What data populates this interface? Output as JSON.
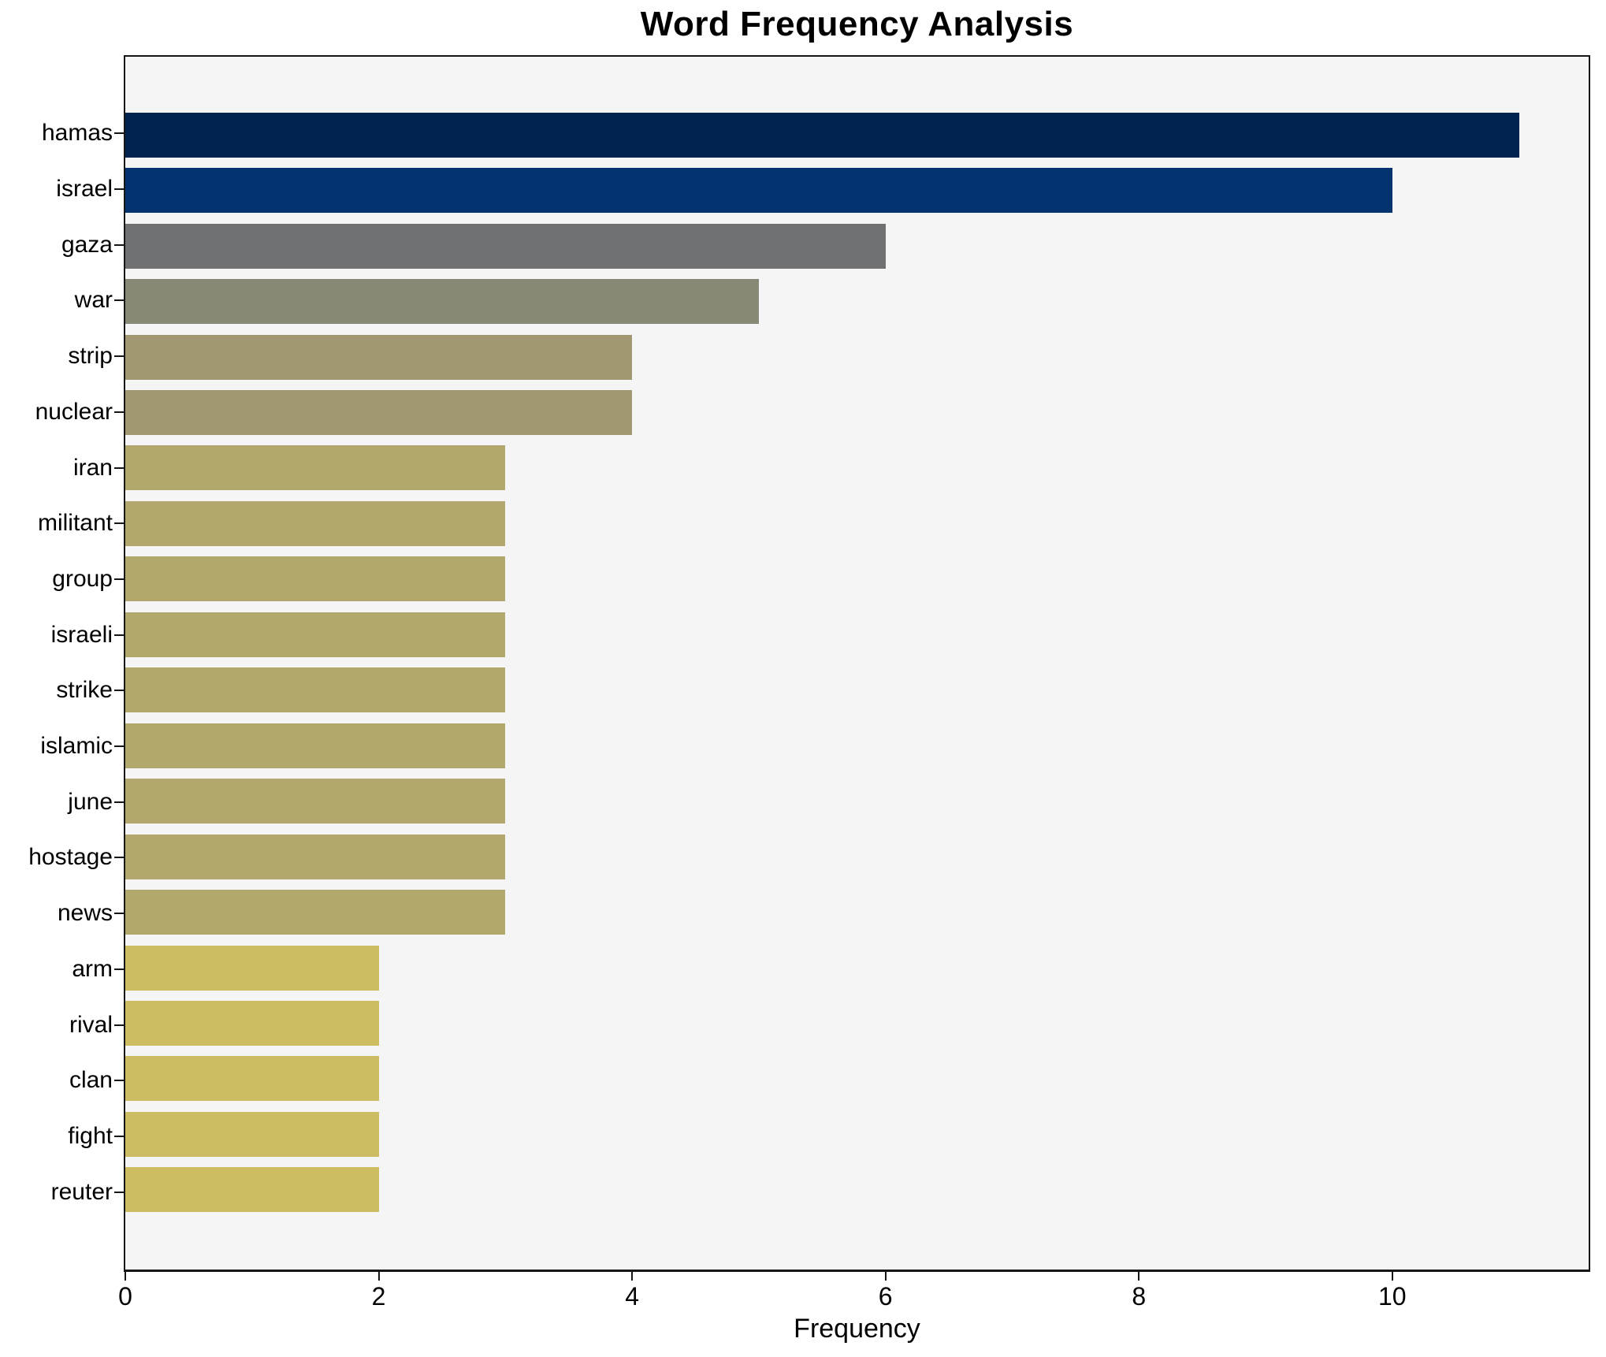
{
  "chart_data": {
    "type": "bar",
    "orientation": "horizontal",
    "title": "Word Frequency Analysis",
    "xlabel": "Frequency",
    "ylabel": "",
    "categories": [
      "hamas",
      "israel",
      "gaza",
      "war",
      "strip",
      "nuclear",
      "iran",
      "militant",
      "group",
      "israeli",
      "strike",
      "islamic",
      "june",
      "hostage",
      "news",
      "arm",
      "rival",
      "clan",
      "fight",
      "reuter"
    ],
    "values": [
      11,
      10,
      6,
      5,
      4,
      4,
      3,
      3,
      3,
      3,
      3,
      3,
      3,
      3,
      3,
      2,
      2,
      2,
      2,
      2
    ],
    "bar_colors": [
      "#02234e",
      "#04346f",
      "#707173",
      "#888877",
      "#a19873",
      "#a19873",
      "#b2a86d",
      "#b2a86d",
      "#b2a86d",
      "#b2a86d",
      "#b2a86d",
      "#b2a86d",
      "#b2a86d",
      "#b2a86d",
      "#b2a86d",
      "#ccbc62",
      "#ccbc62",
      "#ccbc62",
      "#ccbc62",
      "#ccbc62"
    ],
    "x_tick_values": [
      0,
      2,
      4,
      6,
      8,
      10
    ],
    "x_tick_labels": [
      "0",
      "2",
      "4",
      "6",
      "8",
      "10"
    ],
    "xlim": [
      0,
      11.55
    ],
    "grid": false,
    "legend_position": "none",
    "plot_background": "#f6f5f5",
    "spine_color": "#161616",
    "text_color": "#000000"
  }
}
